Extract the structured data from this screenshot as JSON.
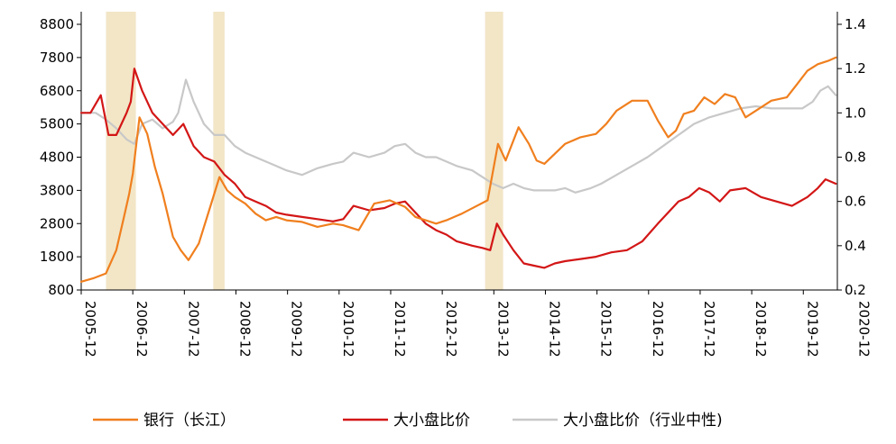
{
  "chart_data": {
    "type": "line",
    "title": "",
    "xlabel": "",
    "ylabel_left": "",
    "ylabel_right": "",
    "x_ticks": [
      "2005-12",
      "2006-12",
      "2007-12",
      "2008-12",
      "2009-12",
      "2010-12",
      "2011-12",
      "2012-12",
      "2013-12",
      "2014-12",
      "2015-12",
      "2016-12",
      "2017-12",
      "2018-12",
      "2019-12",
      "2020-12"
    ],
    "y_left": {
      "min": 800,
      "max": 8800,
      "ticks": [
        "800",
        "1800",
        "2800",
        "3800",
        "4800",
        "5800",
        "6800",
        "7800",
        "8800"
      ]
    },
    "y_right": {
      "min": 0.2,
      "max": 1.4,
      "ticks": [
        "0.2",
        "0.4",
        "0.6",
        "0.8",
        "1.0",
        "1.2",
        "1.4"
      ]
    },
    "grid": false,
    "legend_position": "bottom",
    "shaded_periods": [
      {
        "start": 2006.4,
        "end": 2006.98
      },
      {
        "start": 2008.48,
        "end": 2008.7
      },
      {
        "start": 2013.75,
        "end": 2014.1
      }
    ],
    "series": [
      {
        "name": "银行（长江）",
        "axis": "left",
        "color": "#F07F1E",
        "x": [
          2005.92,
          2006.15,
          2006.4,
          2006.6,
          2006.75,
          2006.85,
          2006.92,
          2007.05,
          2007.2,
          2007.35,
          2007.5,
          2007.7,
          2007.85,
          2008.0,
          2008.2,
          2008.4,
          2008.6,
          2008.75,
          2008.9,
          2009.1,
          2009.3,
          2009.5,
          2009.7,
          2009.9,
          2010.2,
          2010.5,
          2010.8,
          2011.0,
          2011.3,
          2011.6,
          2011.9,
          2012.2,
          2012.4,
          2012.6,
          2012.8,
          2013.0,
          2013.3,
          2013.55,
          2013.8,
          2014.0,
          2014.15,
          2014.4,
          2014.6,
          2014.75,
          2014.9,
          2015.1,
          2015.3,
          2015.6,
          2015.9,
          2016.1,
          2016.3,
          2016.6,
          2016.9,
          2017.1,
          2017.3,
          2017.45,
          2017.6,
          2017.8,
          2018.0,
          2018.2,
          2018.4,
          2018.6,
          2018.8,
          2019.0,
          2019.3,
          2019.6,
          2019.8,
          2020.0,
          2020.2,
          2020.4,
          2020.55
        ],
        "values": [
          1050,
          1150,
          1300,
          2000,
          3000,
          3700,
          4300,
          6000,
          5500,
          4500,
          3700,
          2400,
          2000,
          1700,
          2200,
          3200,
          4200,
          3800,
          3600,
          3400,
          3100,
          2900,
          3000,
          2900,
          2850,
          2700,
          2800,
          2750,
          2600,
          3400,
          3500,
          3300,
          3000,
          2900,
          2800,
          2900,
          3100,
          3300,
          3500,
          5200,
          4700,
          5700,
          5200,
          4700,
          4600,
          4900,
          5200,
          5400,
          5500,
          5800,
          6200,
          6500,
          6500,
          5900,
          5400,
          5600,
          6100,
          6200,
          6600,
          6400,
          6700,
          6600,
          6000,
          6200,
          6500,
          6600,
          7000,
          7400,
          7600,
          7700,
          7800
        ]
      },
      {
        "name": "大小盘比价",
        "axis": "right",
        "color": "#D31616",
        "x": [
          2005.92,
          2006.1,
          2006.3,
          2006.45,
          2006.6,
          2006.7,
          2006.8,
          2006.88,
          2006.95,
          2007.1,
          2007.3,
          2007.5,
          2007.7,
          2007.9,
          2008.1,
          2008.3,
          2008.5,
          2008.7,
          2008.9,
          2009.1,
          2009.3,
          2009.5,
          2009.7,
          2009.9,
          2010.2,
          2010.5,
          2010.8,
          2011.0,
          2011.2,
          2011.5,
          2011.8,
          2012.0,
          2012.2,
          2012.4,
          2012.6,
          2012.8,
          2013.0,
          2013.2,
          2013.5,
          2013.7,
          2013.85,
          2013.98,
          2014.1,
          2014.3,
          2014.5,
          2014.7,
          2014.9,
          2015.1,
          2015.3,
          2015.6,
          2015.9,
          2016.2,
          2016.5,
          2016.8,
          2017.1,
          2017.3,
          2017.5,
          2017.7,
          2017.9,
          2018.1,
          2018.3,
          2018.5,
          2018.8,
          2019.1,
          2019.4,
          2019.7,
          2020.0,
          2020.2,
          2020.35,
          2020.55
        ],
        "values": [
          1.0,
          1.0,
          1.08,
          0.9,
          0.9,
          0.95,
          1.0,
          1.05,
          1.2,
          1.1,
          1.0,
          0.95,
          0.9,
          0.95,
          0.85,
          0.8,
          0.78,
          0.72,
          0.68,
          0.62,
          0.6,
          0.58,
          0.55,
          0.54,
          0.53,
          0.52,
          0.51,
          0.52,
          0.58,
          0.56,
          0.57,
          0.59,
          0.6,
          0.55,
          0.5,
          0.47,
          0.45,
          0.42,
          0.4,
          0.39,
          0.38,
          0.5,
          0.45,
          0.38,
          0.32,
          0.31,
          0.3,
          0.32,
          0.33,
          0.34,
          0.35,
          0.37,
          0.38,
          0.42,
          0.5,
          0.55,
          0.6,
          0.62,
          0.66,
          0.64,
          0.6,
          0.65,
          0.66,
          0.62,
          0.6,
          0.58,
          0.62,
          0.66,
          0.7,
          0.68
        ]
      },
      {
        "name": "大小盘比价（行业中性)",
        "axis": "right",
        "color": "#C8C8C8",
        "x": [
          2005.92,
          2006.2,
          2006.4,
          2006.6,
          2006.8,
          2006.95,
          2007.1,
          2007.3,
          2007.5,
          2007.7,
          2007.8,
          2007.95,
          2008.1,
          2008.3,
          2008.5,
          2008.7,
          2008.9,
          2009.1,
          2009.3,
          2009.5,
          2009.7,
          2009.9,
          2010.2,
          2010.5,
          2010.8,
          2011.0,
          2011.2,
          2011.5,
          2011.8,
          2012.0,
          2012.2,
          2012.4,
          2012.6,
          2012.8,
          2013.0,
          2013.2,
          2013.5,
          2013.7,
          2013.9,
          2014.1,
          2014.3,
          2014.5,
          2014.7,
          2014.9,
          2015.1,
          2015.3,
          2015.5,
          2015.8,
          2016.0,
          2016.3,
          2016.6,
          2016.9,
          2017.2,
          2017.5,
          2017.8,
          2018.1,
          2018.4,
          2018.7,
          2019.0,
          2019.3,
          2019.6,
          2019.9,
          2020.1,
          2020.25,
          2020.4,
          2020.55
        ],
        "values": [
          1.0,
          1.0,
          0.97,
          0.93,
          0.88,
          0.86,
          0.95,
          0.97,
          0.93,
          0.96,
          1.0,
          1.15,
          1.05,
          0.95,
          0.9,
          0.9,
          0.85,
          0.82,
          0.8,
          0.78,
          0.76,
          0.74,
          0.72,
          0.75,
          0.77,
          0.78,
          0.82,
          0.8,
          0.82,
          0.85,
          0.86,
          0.82,
          0.8,
          0.8,
          0.78,
          0.76,
          0.74,
          0.71,
          0.68,
          0.66,
          0.68,
          0.66,
          0.65,
          0.65,
          0.65,
          0.66,
          0.64,
          0.66,
          0.68,
          0.72,
          0.76,
          0.8,
          0.85,
          0.9,
          0.95,
          0.98,
          1.0,
          1.02,
          1.03,
          1.02,
          1.02,
          1.02,
          1.05,
          1.1,
          1.12,
          1.08
        ]
      }
    ]
  }
}
